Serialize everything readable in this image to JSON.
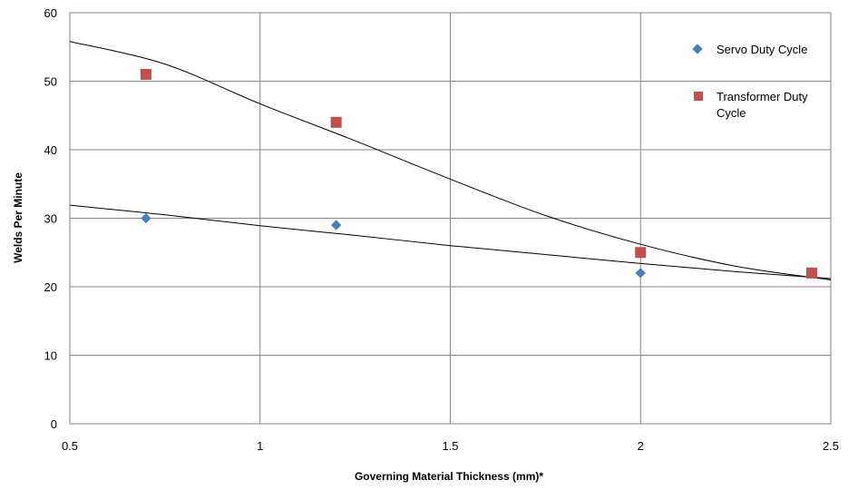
{
  "chart_data": {
    "type": "scatter",
    "title": "",
    "xlabel": "Governing Material Thickness (mm)*",
    "ylabel": "Welds Per Minute",
    "xlim": [
      0.5,
      2.5
    ],
    "ylim": [
      0,
      60
    ],
    "x_ticks": [
      "0.5",
      "1",
      "1.5",
      "2",
      "2.5"
    ],
    "y_ticks": [
      "0",
      "10",
      "20",
      "30",
      "40",
      "50",
      "60"
    ],
    "grid": true,
    "legend_position": "top-right",
    "series": [
      {
        "name": "Servo Duty Cycle",
        "marker": "diamond",
        "color": "#4a7ebb",
        "points": [
          [
            0.7,
            30
          ],
          [
            1.2,
            29
          ],
          [
            2.0,
            22
          ]
        ],
        "trendline": [
          [
            0.5,
            31.9
          ],
          [
            0.75,
            30.5
          ],
          [
            1.0,
            28.9
          ],
          [
            1.25,
            27.5
          ],
          [
            1.5,
            26.0
          ],
          [
            1.75,
            24.7
          ],
          [
            2.0,
            23.4
          ],
          [
            2.25,
            22.2
          ],
          [
            2.5,
            21.2
          ]
        ]
      },
      {
        "name": "Transformer Duty Cycle",
        "marker": "square",
        "color": "#c0504d",
        "points": [
          [
            0.7,
            51
          ],
          [
            1.2,
            44
          ],
          [
            2.0,
            25
          ],
          [
            2.45,
            22
          ]
        ],
        "trendline": [
          [
            0.5,
            55.8
          ],
          [
            0.75,
            52.5
          ],
          [
            1.0,
            46.7
          ],
          [
            1.25,
            41.3
          ],
          [
            1.5,
            35.7
          ],
          [
            1.75,
            30.4
          ],
          [
            2.0,
            26.2
          ],
          [
            2.25,
            23.0
          ],
          [
            2.5,
            21.0
          ]
        ]
      }
    ]
  }
}
